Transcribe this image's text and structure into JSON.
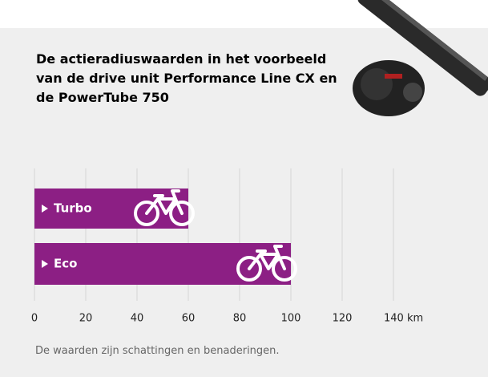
{
  "chart_data": {
    "type": "bar",
    "orientation": "horizontal",
    "title": "De actieradiuswaarden in het voorbeeld van de drive unit Performance Line CX en de PowerTube 750",
    "categories": [
      "Turbo",
      "Eco"
    ],
    "values": [
      60,
      100
    ],
    "color": "#8c1f84",
    "xlim": [
      0,
      140
    ],
    "xticks": [
      0,
      20,
      40,
      60,
      80,
      100,
      120,
      {
        "value": 140,
        "label": "140 km"
      }
    ],
    "grid": true,
    "note": "De waarden zijn schattingen en benaderingen."
  }
}
